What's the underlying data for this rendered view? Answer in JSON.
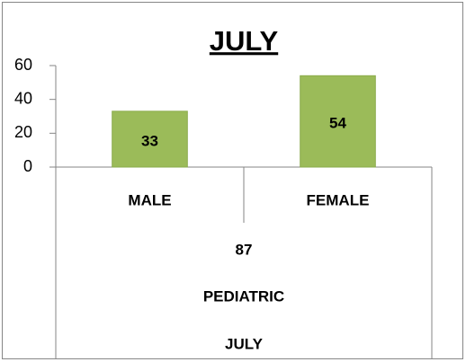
{
  "chart_data": {
    "type": "bar",
    "title": "JULY",
    "categories": [
      "MALE",
      "FEMALE"
    ],
    "values": [
      33,
      54
    ],
    "color": "#9bbb59",
    "group_labels": [
      "87",
      "PEDIATRIC",
      "JULY"
    ],
    "ylim": [
      0,
      60
    ],
    "yticks": [
      0,
      20,
      40,
      60
    ],
    "grid": false
  }
}
